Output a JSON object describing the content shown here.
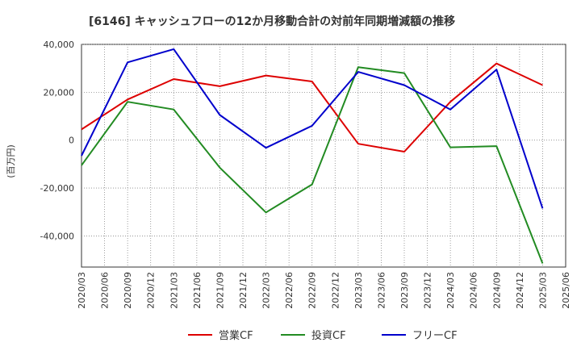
{
  "chart_data": {
    "type": "line",
    "title": "[6146]  キャッシュフローの12か月移動合計の対前年同期増減額の推移",
    "ylabel": "(百万円)",
    "ylim": [
      -53000,
      40000
    ],
    "yticks": [
      40000,
      20000,
      0,
      -20000,
      -40000
    ],
    "ytick_labels": [
      "40,000",
      "20,000",
      "0",
      "-20,000",
      "-40,000"
    ],
    "x": [
      "2020/03",
      "2020/06",
      "2020/09",
      "2020/12",
      "2021/03",
      "2021/06",
      "2021/09",
      "2021/12",
      "2022/03",
      "2022/06",
      "2022/09",
      "2022/12",
      "2023/03",
      "2023/06",
      "2023/09",
      "2023/12",
      "2024/03",
      "2024/06",
      "2024/09",
      "2024/12",
      "2025/03",
      "2025/06"
    ],
    "grid": true,
    "legend_position": "bottom",
    "series": [
      {
        "name": "営業CF",
        "color": "#dd0000",
        "values": [
          4500,
          null,
          17000,
          null,
          25500,
          null,
          22500,
          null,
          27000,
          null,
          24500,
          null,
          -1500,
          null,
          -4800,
          null,
          16000,
          null,
          32000,
          null,
          23000,
          null
        ]
      },
      {
        "name": "投資CF",
        "color": "#228b22",
        "values": [
          -10500,
          null,
          16000,
          null,
          12800,
          null,
          -11500,
          null,
          -30200,
          null,
          -18500,
          null,
          30500,
          null,
          28000,
          null,
          -3000,
          null,
          -2500,
          null,
          -51500,
          null
        ]
      },
      {
        "name": "フリーCF",
        "color": "#0000cc",
        "values": [
          -6500,
          null,
          32500,
          null,
          38000,
          null,
          10500,
          null,
          -3200,
          null,
          6000,
          null,
          28500,
          null,
          23000,
          null,
          12800,
          null,
          29500,
          null,
          -28500,
          null
        ]
      }
    ]
  }
}
